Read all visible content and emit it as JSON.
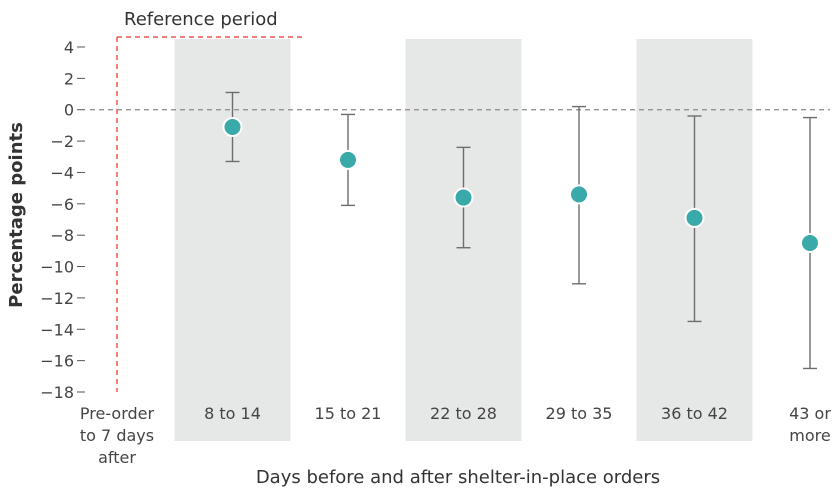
{
  "chart_data": {
    "type": "scatter",
    "title": "",
    "xlabel": "Days before and after shelter-in-place orders",
    "ylabel": "Percentage points",
    "ylim": [
      -18,
      4
    ],
    "yticks": [
      4,
      2,
      0,
      -2,
      -4,
      -6,
      -8,
      -10,
      -12,
      -14,
      -16,
      -18
    ],
    "ytick_labels": [
      "4",
      "2",
      "0",
      "−2",
      "−4",
      "−6",
      "−8",
      "−10",
      "−12",
      "−14",
      "−16",
      "−18"
    ],
    "categories": [
      [
        "Pre-order",
        "to 7 days",
        "after"
      ],
      [
        "8 to 14"
      ],
      [
        "15 to 21"
      ],
      [
        "22 to 28"
      ],
      [
        "29 to 35"
      ],
      [
        "36 to 42"
      ],
      [
        "43 or",
        "more"
      ]
    ],
    "points": [
      {
        "category_index": 1,
        "value": -1.1,
        "lower": -3.3,
        "upper": 1.1
      },
      {
        "category_index": 2,
        "value": -3.2,
        "lower": -6.1,
        "upper": -0.3
      },
      {
        "category_index": 3,
        "value": -5.6,
        "lower": -8.8,
        "upper": -2.4
      },
      {
        "category_index": 4,
        "value": -5.4,
        "lower": -11.1,
        "upper": 0.2
      },
      {
        "category_index": 5,
        "value": -6.9,
        "lower": -13.5,
        "upper": -0.4
      },
      {
        "category_index": 6,
        "value": -8.5,
        "lower": -16.5,
        "upper": -0.5
      }
    ],
    "shaded_categories": [
      1,
      3,
      5
    ],
    "reference_period": {
      "label": "Reference period",
      "category_index": 0
    },
    "zero_line": true,
    "colors": {
      "point": "#3aa9a9",
      "shade": "#e6e7e7",
      "reference": "#e8584f",
      "errorbar": "#6d6d6d",
      "zero_line": "#8a8a8a"
    }
  }
}
